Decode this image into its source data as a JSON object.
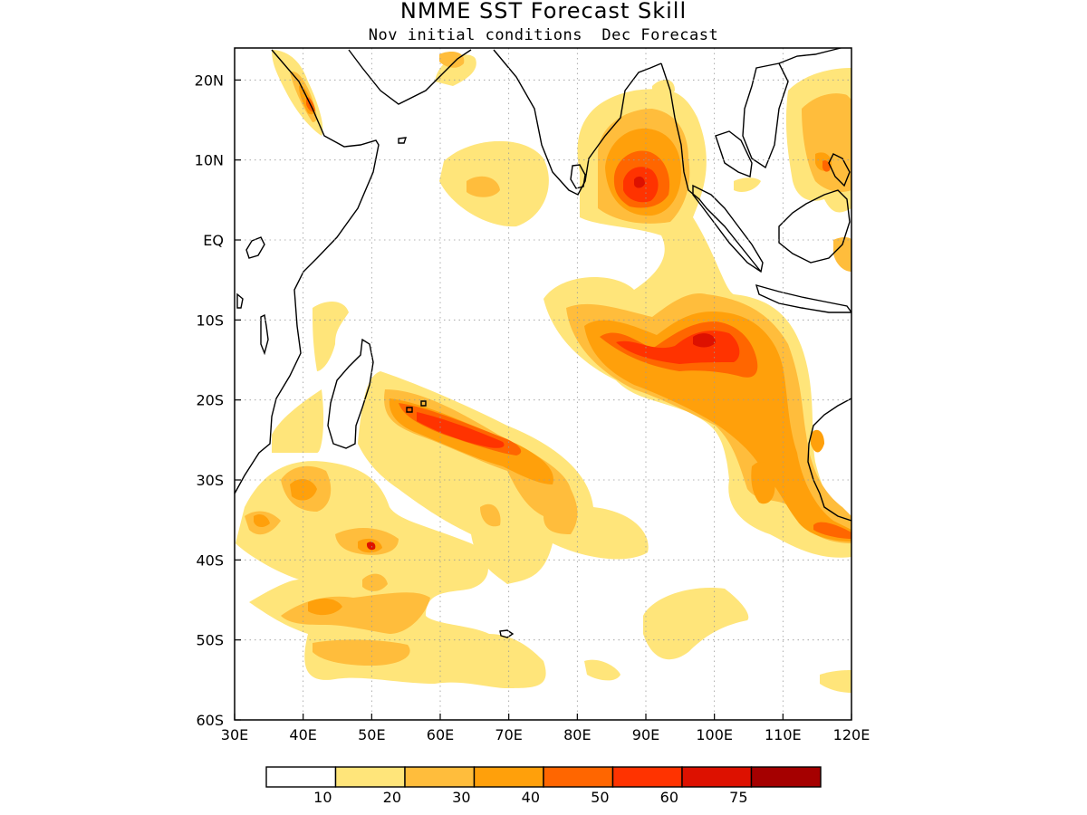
{
  "header": {
    "title": "NMME SST Forecast Skill",
    "subtitle": "Nov initial conditions  Dec Forecast"
  },
  "map": {
    "lon_range": [
      30,
      120
    ],
    "lat_range": [
      -60,
      24
    ],
    "x_ticks": [
      "30E",
      "40E",
      "50E",
      "60E",
      "70E",
      "80E",
      "90E",
      "100E",
      "110E",
      "120E"
    ],
    "y_ticks": [
      "20N",
      "10N",
      "EQ",
      "10S",
      "20S",
      "30S",
      "40S",
      "50S",
      "60S"
    ],
    "grid": "dotted"
  },
  "colorbar": {
    "colors": [
      "#ffffff",
      "#ffe57a",
      "#ffbd3c",
      "#ffa00b",
      "#ff6600",
      "#ff3300",
      "#dd1100",
      "#a50000"
    ],
    "labels": [
      "10",
      "20",
      "30",
      "40",
      "50",
      "60",
      "75"
    ]
  }
}
